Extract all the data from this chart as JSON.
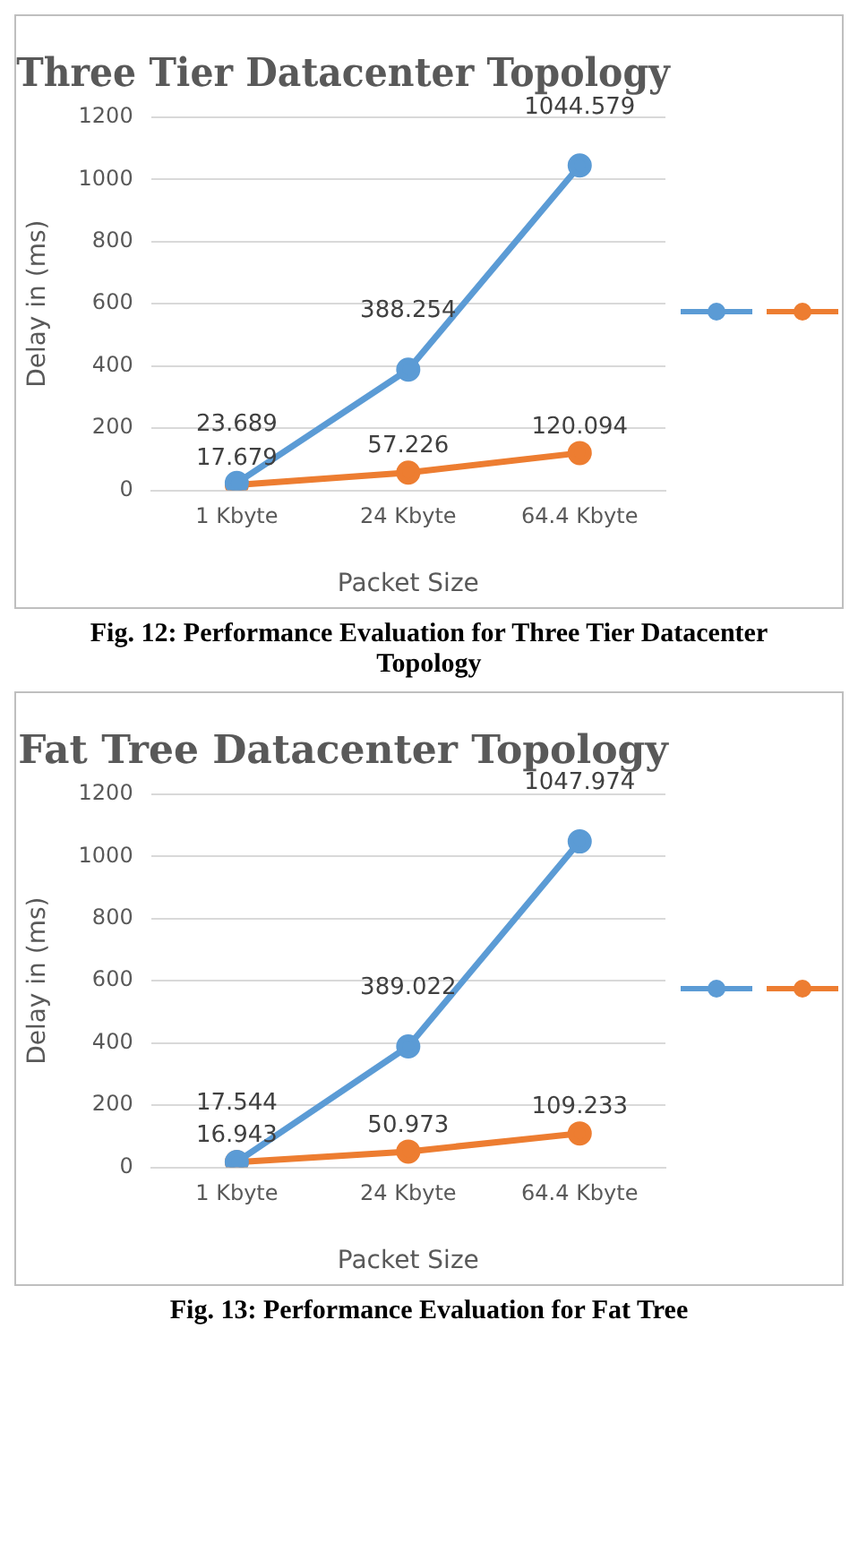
{
  "chart_data": [
    {
      "type": "line",
      "title": "Three Tier Datacenter Topology",
      "xlabel": "Packet Size",
      "ylabel": "Delay in (ms)",
      "categories": [
        "1 Kbyte",
        "24 Kbyte",
        "64.4 Kbyte"
      ],
      "series": [
        {
          "color": "#5b9bd5",
          "values": [
            23.689,
            388.254,
            1044.579
          ]
        },
        {
          "color": "#ed7d31",
          "values": [
            17.679,
            57.226,
            120.094
          ]
        }
      ],
      "ylim": [
        0,
        1200
      ],
      "yticks": [
        0,
        200,
        400,
        600,
        800,
        1000,
        1200
      ],
      "grid": "y",
      "marker": "circle",
      "data_labels": true,
      "annotations": [
        "Fig. 12: Performance Evaluation for Three Tier Datacenter Topology"
      ]
    },
    {
      "type": "line",
      "title": "Fat Tree Datacenter Topology",
      "xlabel": "Packet Size",
      "ylabel": "Delay in (ms)",
      "categories": [
        "1 Kbyte",
        "24 Kbyte",
        "64.4 Kbyte"
      ],
      "series": [
        {
          "color": "#5b9bd5",
          "values": [
            17.544,
            389.022,
            1047.974
          ]
        },
        {
          "color": "#ed7d31",
          "values": [
            16.943,
            50.973,
            109.233
          ]
        }
      ],
      "ylim": [
        0,
        1200
      ],
      "yticks": [
        0,
        200,
        400,
        600,
        800,
        1000,
        1200
      ],
      "grid": "y",
      "marker": "circle",
      "data_labels": true,
      "annotations": [
        "Fig. 13: Performance Evaluation for Fat Tree"
      ]
    }
  ]
}
